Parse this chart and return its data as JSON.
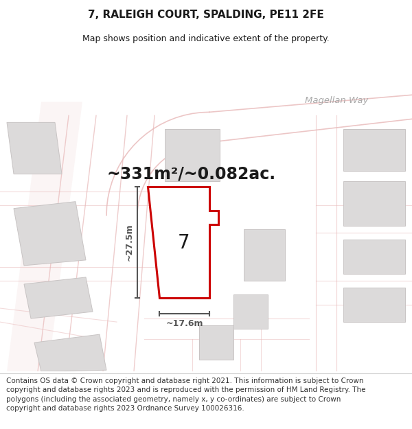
{
  "title": "7, RALEIGH COURT, SPALDING, PE11 2FE",
  "subtitle": "Map shows position and indicative extent of the property.",
  "area_text": "~331m²/~0.082ac.",
  "width_label": "~17.6m",
  "height_label": "~27.5m",
  "property_number": "7",
  "footer_text": "Contains OS data © Crown copyright and database right 2021. This information is subject to Crown copyright and database rights 2023 and is reproduced with the permission of HM Land Registry. The polygons (including the associated geometry, namely x, y co-ordinates) are subject to Crown copyright and database rights 2023 Ordnance Survey 100026316.",
  "map_bg": "#f7f4f4",
  "road_line_color": "#e8b8b8",
  "road_fill_color": "#f5e8e8",
  "building_face": "#dcdada",
  "building_edge": "#c8c4c4",
  "property_fill": "#ffffff",
  "property_edge": "#cc0000",
  "text_color": "#1a1a1a",
  "dim_color": "#555555",
  "road_label_color": "#aaaaaa",
  "title_fontsize": 11,
  "subtitle_fontsize": 9,
  "area_fontsize": 17,
  "number_fontsize": 20,
  "footer_fontsize": 7.5,
  "dim_fontsize": 9
}
